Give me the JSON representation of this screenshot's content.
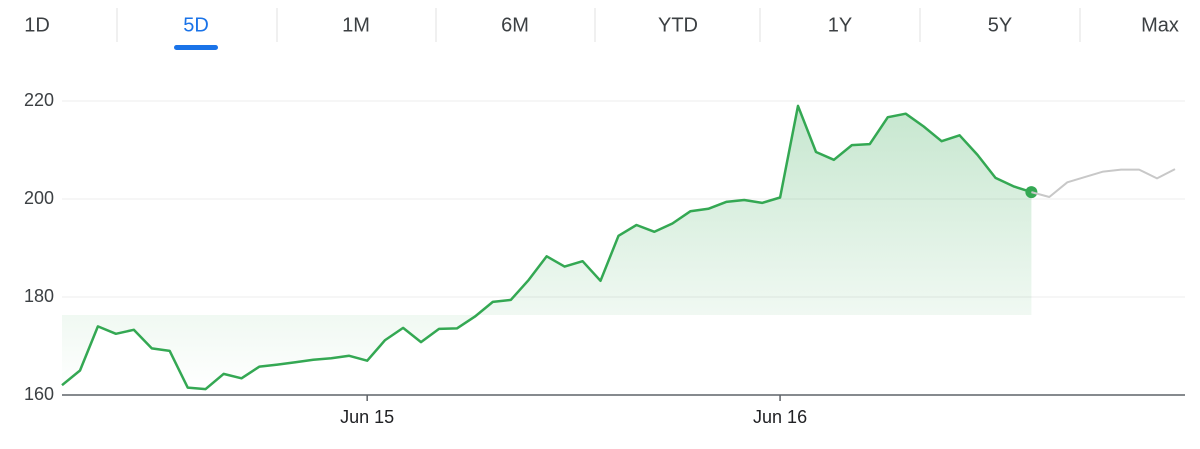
{
  "tabs": [
    "1D",
    "5D",
    "1M",
    "6M",
    "YTD",
    "1Y",
    "5Y",
    "Max"
  ],
  "selected_tab": 1,
  "chart_data": {
    "type": "line",
    "categories": [
      null,
      null,
      null,
      null,
      null,
      null,
      null,
      null,
      null,
      null,
      null,
      null,
      null,
      null,
      null,
      null,
      null,
      "Jun 15",
      null,
      null,
      null,
      null,
      null,
      null,
      null,
      null,
      null,
      null,
      null,
      null,
      null,
      null,
      null,
      null,
      null,
      null,
      null,
      null,
      null,
      null,
      "Jun 16",
      null,
      null,
      null,
      null,
      null,
      null,
      null,
      null,
      null,
      null,
      null,
      null,
      null,
      null,
      null,
      null,
      null,
      null,
      null,
      null,
      null,
      null
    ],
    "series": [
      {
        "color": "#34a853",
        "values": [
          162,
          165,
          174,
          172.5,
          173.3,
          169.5,
          169,
          161.5,
          161.2,
          164.3,
          163.4,
          165.8,
          166.2,
          166.7,
          167.2,
          167.5,
          168,
          167,
          171.2,
          173.7,
          170.8,
          173.5,
          173.6,
          176,
          179,
          179.4,
          183.5,
          188.3,
          186.2,
          187.3,
          183.3,
          192.5,
          194.7,
          193.3,
          195,
          197.5,
          198,
          199.4,
          199.8,
          199.2,
          200.3,
          219,
          209.6,
          208,
          211,
          211.2,
          216.7,
          217.4,
          214.8,
          211.8,
          213,
          209,
          204.3,
          202.6,
          201.4,
          null,
          null,
          null,
          null,
          null,
          null,
          null,
          null
        ]
      },
      {
        "color": "#c8c8c8",
        "values": [
          null,
          null,
          null,
          null,
          null,
          null,
          null,
          null,
          null,
          null,
          null,
          null,
          null,
          null,
          null,
          null,
          null,
          null,
          null,
          null,
          null,
          null,
          null,
          null,
          null,
          null,
          null,
          null,
          null,
          null,
          null,
          null,
          null,
          null,
          null,
          null,
          null,
          null,
          null,
          null,
          null,
          null,
          null,
          null,
          null,
          null,
          null,
          null,
          null,
          null,
          null,
          null,
          null,
          null,
          201.4,
          200.4,
          203.4,
          204.5,
          205.6,
          206,
          206,
          204.2,
          206.1
        ]
      }
    ],
    "ylim": [
      160,
      222
    ],
    "yticks": [
      160,
      180,
      200,
      220
    ],
    "grid": true
  }
}
